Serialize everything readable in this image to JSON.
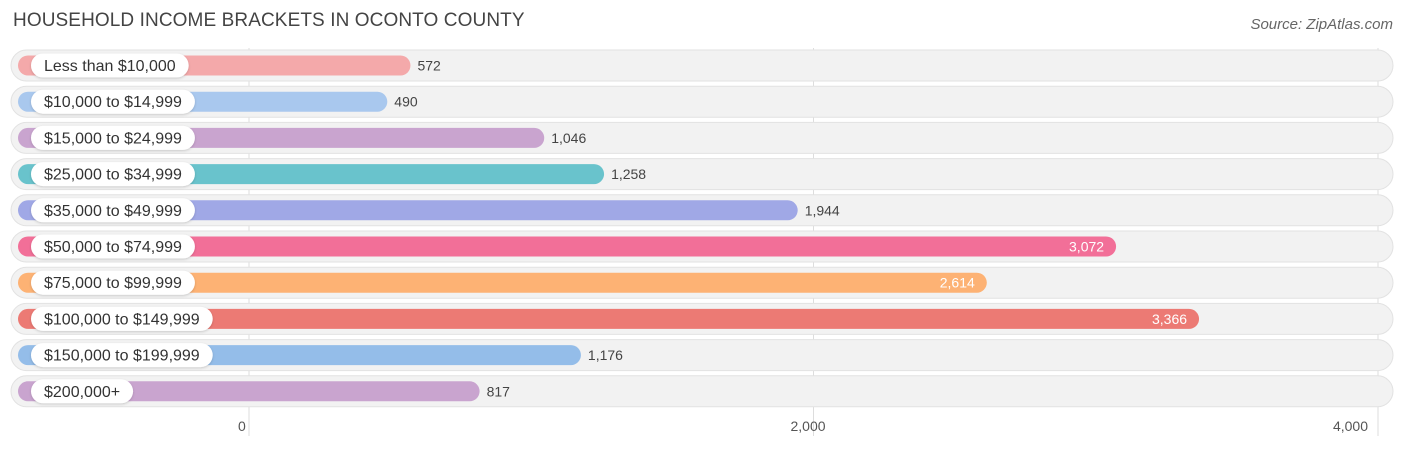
{
  "title": "HOUSEHOLD INCOME BRACKETS IN OCONTO COUNTY",
  "source": "Source: ZipAtlas.com",
  "chart_data": {
    "type": "bar",
    "orientation": "horizontal",
    "title": "HOUSEHOLD INCOME BRACKETS IN OCONTO COUNTY",
    "categories": [
      "Less than $10,000",
      "$10,000 to $14,999",
      "$15,000 to $24,999",
      "$25,000 to $34,999",
      "$35,000 to $49,999",
      "$50,000 to $74,999",
      "$75,000 to $99,999",
      "$100,000 to $149,999",
      "$150,000 to $199,999",
      "$200,000+"
    ],
    "values": [
      572,
      490,
      1046,
      1258,
      1944,
      3072,
      2614,
      3366,
      1176,
      817
    ],
    "value_labels": [
      "572",
      "490",
      "1,046",
      "1,258",
      "1,944",
      "3,072",
      "2,614",
      "3,366",
      "1,176",
      "817"
    ],
    "colors": [
      "#f4a9aa",
      "#a9c8ee",
      "#c9a4cf",
      "#69c3cc",
      "#a0a8e6",
      "#f26f98",
      "#fdb274",
      "#ec7a74",
      "#94bde9",
      "#c9a4cf"
    ],
    "xlim": [
      0,
      4000
    ],
    "x_ticks": [
      0,
      2000,
      4000
    ],
    "x_tick_labels": [
      "0",
      "2,000",
      "4,000"
    ],
    "grid": true,
    "xlabel": "",
    "ylabel": ""
  }
}
